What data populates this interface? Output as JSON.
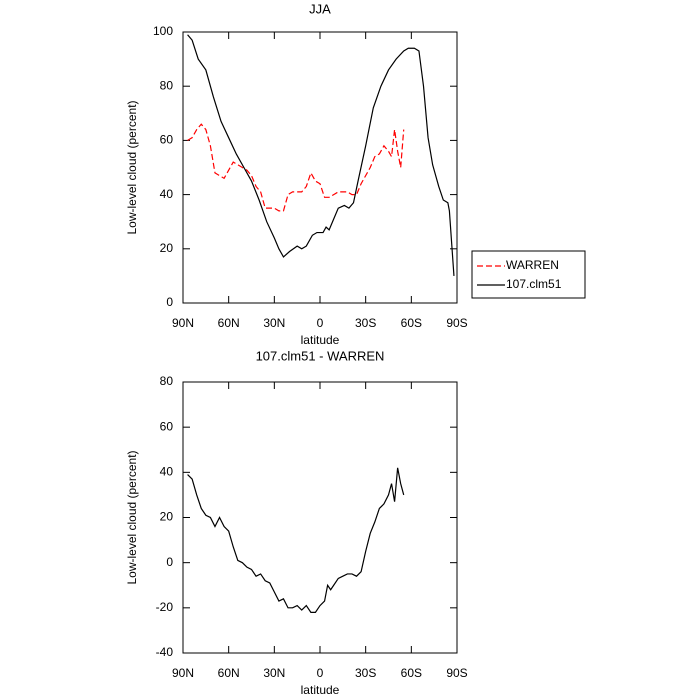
{
  "chart_data": [
    {
      "type": "line",
      "title": "JJA",
      "xlabel": "latitude",
      "ylabel": "Low-level cloud (percent)",
      "xlim": [
        90,
        -90
      ],
      "ylim": [
        0,
        100
      ],
      "xticks": [
        {
          "value": 90,
          "label": "90N"
        },
        {
          "value": 60,
          "label": "60N"
        },
        {
          "value": 30,
          "label": "30N"
        },
        {
          "value": 0,
          "label": "0"
        },
        {
          "value": -30,
          "label": "30S"
        },
        {
          "value": -60,
          "label": "60S"
        },
        {
          "value": -90,
          "label": "90S"
        }
      ],
      "yticks": [
        0,
        20,
        40,
        60,
        80,
        100
      ],
      "legend": "right",
      "series": [
        {
          "name": "WARREN",
          "color": "#ff0000",
          "dash": true,
          "x": [
            87,
            84,
            81,
            78,
            75,
            72,
            69,
            66,
            63,
            60,
            57,
            54,
            51,
            48,
            45,
            42,
            39,
            36,
            33,
            30,
            27,
            24,
            21,
            18,
            15,
            12,
            9,
            6,
            3,
            0,
            -3,
            -6,
            -9,
            -12,
            -15,
            -18,
            -21,
            -24,
            -27,
            -30,
            -33,
            -36,
            -39,
            -42,
            -45,
            -47,
            -49,
            -51,
            -53,
            -55
          ],
          "values": [
            60,
            61,
            64,
            66,
            64,
            58,
            48,
            47,
            46,
            49,
            52,
            51,
            50,
            49,
            47,
            43,
            41,
            35,
            35,
            35,
            34,
            34,
            40,
            41,
            41,
            41,
            43,
            48,
            45,
            44,
            39,
            39,
            40,
            41,
            41,
            41,
            40,
            40,
            44,
            47,
            50,
            54,
            55,
            58,
            56,
            54,
            64,
            56,
            50,
            64
          ]
        },
        {
          "name": "107.clm51",
          "color": "#000000",
          "dash": false,
          "x": [
            87,
            84,
            80,
            75,
            70,
            65,
            60,
            55,
            50,
            45,
            40,
            35,
            30,
            27,
            24,
            20,
            15,
            12,
            9,
            5,
            2,
            -2,
            -4,
            -6,
            -9,
            -12,
            -16,
            -19,
            -22,
            -25,
            -30,
            -35,
            -40,
            -45,
            -50,
            -55,
            -58,
            -62,
            -65,
            -68,
            -71,
            -74,
            -78,
            -81,
            -84,
            -85,
            -88
          ],
          "values": [
            99,
            97,
            90,
            86,
            76,
            67,
            61,
            55,
            50,
            45,
            38,
            30,
            24,
            20,
            17,
            19,
            21,
            20,
            21,
            25,
            26,
            26,
            28,
            27,
            31,
            35,
            36,
            35,
            37,
            45,
            58,
            72,
            80,
            86,
            90,
            93,
            94,
            94,
            93,
            80,
            61,
            51,
            43,
            38,
            37,
            34,
            10
          ]
        }
      ]
    },
    {
      "type": "line",
      "title": "107.clm51 - WARREN",
      "xlabel": "latitude",
      "ylabel": "Low-level cloud (percent)",
      "xlim": [
        90,
        -90
      ],
      "ylim": [
        -40,
        80
      ],
      "xticks": [
        {
          "value": 90,
          "label": "90N"
        },
        {
          "value": 60,
          "label": "60N"
        },
        {
          "value": 30,
          "label": "30N"
        },
        {
          "value": 0,
          "label": "0"
        },
        {
          "value": -30,
          "label": "30S"
        },
        {
          "value": -60,
          "label": "60S"
        },
        {
          "value": -90,
          "label": "90S"
        }
      ],
      "yticks": [
        -40,
        -20,
        0,
        20,
        40,
        60,
        80
      ],
      "series": [
        {
          "color": "#000000",
          "dash": false,
          "x": [
            87,
            84,
            81,
            78,
            75,
            72,
            69,
            66,
            63,
            60,
            57,
            54,
            51,
            48,
            45,
            42,
            39,
            36,
            33,
            30,
            27,
            24,
            21,
            18,
            15,
            12,
            9,
            6,
            3,
            0,
            -3,
            -5,
            -7,
            -9,
            -12,
            -15,
            -18,
            -21,
            -24,
            -27,
            -30,
            -33,
            -36,
            -39,
            -42,
            -45,
            -47,
            -49,
            -51,
            -53,
            -55
          ],
          "values": [
            39,
            37,
            30,
            24,
            21,
            20,
            16,
            20,
            16,
            14,
            7,
            1,
            0,
            -2,
            -3,
            -6,
            -5,
            -8,
            -9,
            -13,
            -17,
            -16,
            -20,
            -20,
            -19,
            -21,
            -19,
            -22,
            -22,
            -19,
            -17,
            -10,
            -12,
            -10,
            -7,
            -6,
            -5,
            -5,
            -6,
            -4,
            5,
            13,
            18,
            24,
            26,
            30,
            35,
            27,
            42,
            35,
            30
          ]
        }
      ]
    }
  ]
}
